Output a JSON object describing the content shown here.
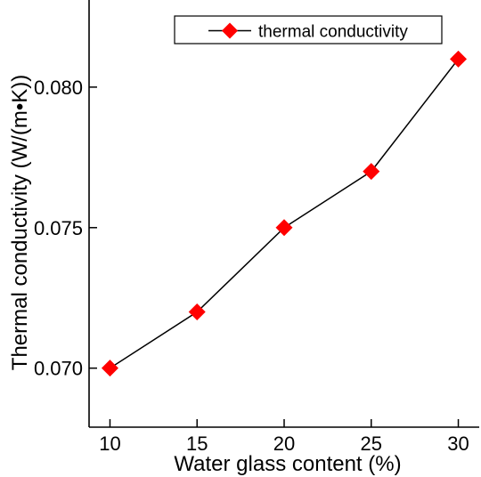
{
  "chart_data": {
    "type": "line",
    "x": [
      10,
      15,
      20,
      25,
      30
    ],
    "series": [
      {
        "name": "thermal conductivity",
        "values": [
          0.07,
          0.072,
          0.075,
          0.077,
          0.081
        ],
        "color": "#ff0000",
        "marker": "diamond",
        "line_color": "#000000"
      }
    ],
    "xlabel": "Water glass content (%)",
    "ylabel": "Thermal conductivity (W/(m•K))",
    "xlim": [
      8.8,
      31.2
    ],
    "ylim": [
      0.0679,
      0.0831
    ],
    "xticks": [
      10,
      15,
      20,
      25,
      30
    ],
    "xtick_labels": [
      "10",
      "15",
      "20",
      "25",
      "30"
    ],
    "yticks": [
      0.07,
      0.075,
      0.08
    ],
    "ytick_labels": [
      "0.070",
      "0.075",
      "0.080"
    ],
    "grid": false,
    "legend_position": "top-right"
  }
}
